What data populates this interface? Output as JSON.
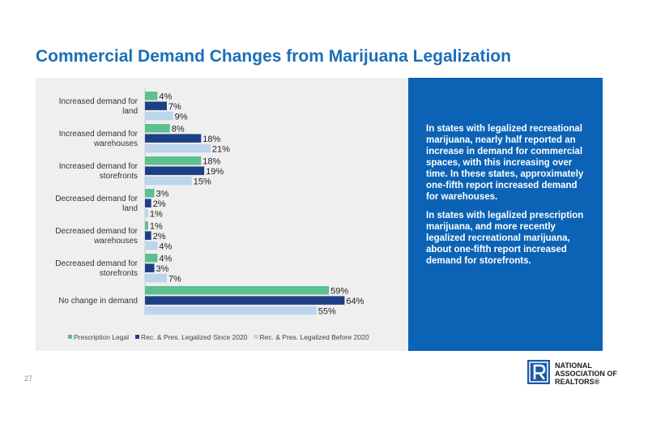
{
  "header": {
    "title": "Commercial Demand Changes from Marijuana Legalization"
  },
  "chart_data": {
    "type": "bar",
    "orientation": "horizontal",
    "categories": [
      [
        "Increased demand for",
        "land"
      ],
      [
        "Increased demand for",
        "warehouses"
      ],
      [
        "Increased demand for",
        "storefronts"
      ],
      [
        "Decreased demand for",
        "land"
      ],
      [
        "Decreased demand for",
        "warehouses"
      ],
      [
        "Decreased demand for",
        "storefronts"
      ],
      [
        "No change in demand"
      ]
    ],
    "series": [
      {
        "name": "Prescription Legal",
        "color": "#5cc08f",
        "values": [
          4,
          8,
          18,
          3,
          1,
          4,
          59
        ]
      },
      {
        "name": "Rec. & Pres. Legalized Since 2020",
        "color": "#1e3f86",
        "values": [
          7,
          18,
          19,
          2,
          2,
          3,
          64
        ]
      },
      {
        "name": "Rec. & Pres. Legalized Before 2020",
        "color": "#bcd5ec",
        "values": [
          9,
          21,
          15,
          1,
          4,
          7,
          55
        ]
      }
    ],
    "value_suffix": "%",
    "xlim": [
      0,
      100
    ],
    "legend_position": "bottom",
    "grid": false
  },
  "callout": {
    "paragraphs": [
      "In states with legalized recreational marijuana, nearly half reported an increase in demand for commercial spaces, with this increasing over time. In these states, approximately one-fifth report increased demand for warehouses.",
      "In states with legalized prescription marijuana, and more recently legalized recreational marijuana, about one-fifth report increased demand for storefronts."
    ]
  },
  "footer": {
    "page_number": "27",
    "logo_lines": [
      "NATIONAL",
      "ASSOCIATION OF",
      "REALTORS®"
    ],
    "logo_icon": "realtor-r-icon"
  }
}
